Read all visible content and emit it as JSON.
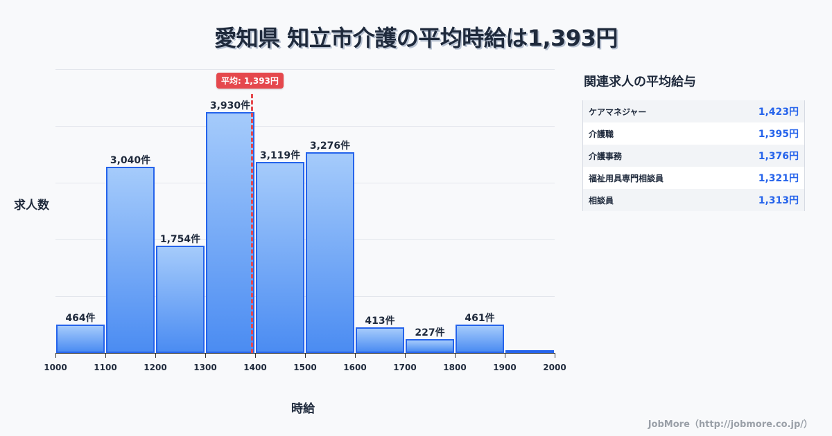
{
  "title": "愛知県 知立市介護の平均時給は1,393円",
  "chart_data": {
    "type": "bar",
    "title": "愛知県 知立市介護の平均時給は1,393円",
    "xlabel": "時給",
    "ylabel": "求人数",
    "x_ticks": [
      "1000",
      "1100",
      "1200",
      "1300",
      "1400",
      "1500",
      "1600",
      "1700",
      "1800",
      "1900",
      "2000"
    ],
    "categories": [
      "1000-1100",
      "1100-1200",
      "1200-1300",
      "1300-1400",
      "1400-1500",
      "1500-1600",
      "1600-1700",
      "1700-1800",
      "1800-1900",
      "1900-2000"
    ],
    "values": [
      464,
      3040,
      1754,
      3930,
      3119,
      3276,
      413,
      227,
      461,
      20
    ],
    "labels": [
      "464件",
      "3,040件",
      "1,754件",
      "3,930件",
      "3,119件",
      "3,276件",
      "413件",
      "227件",
      "461件",
      ""
    ],
    "average": {
      "value": 1393,
      "label": "平均: 1,393円"
    },
    "grid": true,
    "xlim": [
      1000,
      2000
    ]
  },
  "axis": {
    "ylabel": "求人数",
    "xlabel": "時給"
  },
  "related": {
    "title": "関連求人の平均給与",
    "rows": [
      {
        "name": "ケアマネジャー",
        "value": "1,423円"
      },
      {
        "name": "介護職",
        "value": "1,395円"
      },
      {
        "name": "介護事務",
        "value": "1,376円"
      },
      {
        "name": "福祉用具専門相談員",
        "value": "1,321円"
      },
      {
        "name": "相談員",
        "value": "1,313円"
      }
    ]
  },
  "footer": "JobMore（http://jobmore.co.jp/）",
  "colors": {
    "bar": "#4b8cf2",
    "bar_border": "#2563eb",
    "average": "#e5484d",
    "value_text": "#2563eb"
  }
}
